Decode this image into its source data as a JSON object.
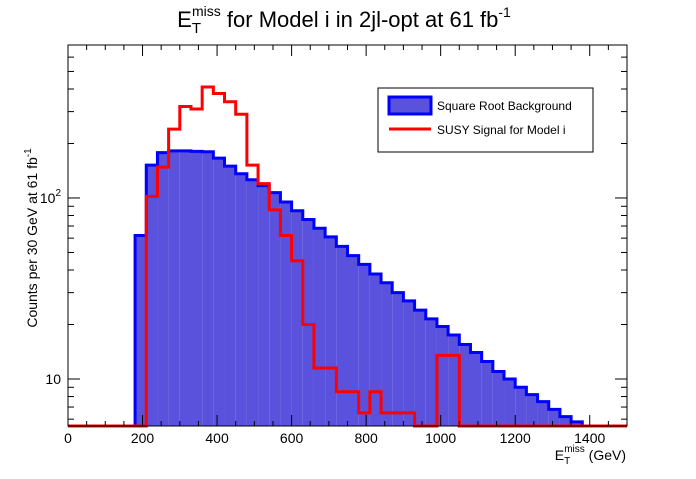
{
  "chart_data": {
    "type": "histogram",
    "title": {
      "main": "E",
      "sub": "T",
      "sup": "miss",
      "rest": " for Model i in 2jl-opt at 61 fb",
      "rest_sup": "-1"
    },
    "xlabel": {
      "main": "E",
      "sub": "T",
      "sup": "miss",
      "rest": " (GeV)"
    },
    "ylabel": {
      "main": "Counts per 30 GeV at 61 fb",
      "sup": "-1"
    },
    "xlim": [
      0,
      1500
    ],
    "ylim": [
      5.5,
      700
    ],
    "yscale": "log",
    "bin_width": 30,
    "x_ticks": [
      "0",
      "200",
      "400",
      "600",
      "800",
      "1000",
      "1200",
      "1400"
    ],
    "y_tick_labels": {
      "ten": "10",
      "hundred": {
        "base": "10",
        "exp": "2"
      }
    },
    "grid": false,
    "legend_position": "top-right",
    "series": [
      {
        "name": "Square Root Background",
        "style": "filled",
        "fill_color": "#5a52dc",
        "line_color": "#0000ff",
        "x_start": 180,
        "values": [
          62,
          152,
          178,
          182,
          182,
          181,
          180,
          166,
          150,
          136,
          126,
          117,
          107,
          95,
          85,
          76,
          68,
          61,
          54,
          48,
          43,
          38,
          34,
          30,
          27,
          24,
          21.5,
          19.5,
          17.5,
          15.5,
          14,
          12.5,
          11,
          10,
          9,
          8.2,
          7.5,
          6.8,
          6.2,
          5.8
        ]
      },
      {
        "name": "SUSY Signal for Model i",
        "style": "line",
        "line_color": "#ff0000",
        "x_start": 210,
        "values": [
          102,
          148,
          240,
          320,
          310,
          410,
          378,
          340,
          290,
          152,
          120,
          86,
          62,
          45,
          20,
          11.5,
          11.5,
          8.5,
          8.5,
          6.5,
          8.5,
          6.5,
          6.5,
          6.5,
          5.5,
          5.5,
          13.5,
          13.5,
          5.5,
          5.5,
          5.5,
          5.5,
          5.5,
          5.5,
          5.5,
          5.5,
          5.5,
          5.5,
          5.5,
          5.5,
          5.5
        ]
      }
    ]
  }
}
